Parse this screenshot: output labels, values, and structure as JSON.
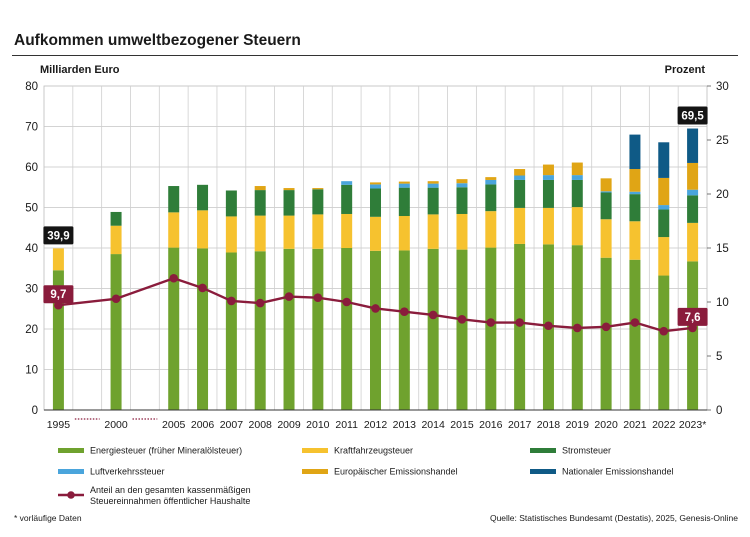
{
  "title": "Aufkommen umweltbezogener Steuern",
  "chart_data": {
    "type": "bar",
    "stacked": true,
    "left_axis_label": "Milliarden Euro",
    "right_axis_label": "Prozent",
    "ylim": [
      0,
      80
    ],
    "yticks": [
      "0",
      "10",
      "20",
      "30",
      "40",
      "50",
      "60",
      "70",
      "80"
    ],
    "y2lim": [
      0,
      30
    ],
    "y2ticks": [
      "0",
      "5",
      "10",
      "15",
      "20",
      "25",
      "30"
    ],
    "categories": [
      "1995",
      "2000",
      "2005",
      "2006",
      "2007",
      "2008",
      "2009",
      "2010",
      "2011",
      "2012",
      "2013",
      "2014",
      "2015",
      "2016",
      "2017",
      "2018",
      "2019",
      "2020",
      "2021",
      "2022",
      "2023*"
    ],
    "series": [
      {
        "name": "Energiesteuer (früher Mineralölsteuer)",
        "color": "#6fa22e",
        "values": [
          34.5,
          38.5,
          40.1,
          39.9,
          38.9,
          39.2,
          39.8,
          39.8,
          40.0,
          39.3,
          39.4,
          39.8,
          39.6,
          40.1,
          41.0,
          40.9,
          40.7,
          37.6,
          37.1,
          33.2,
          36.7
        ]
      },
      {
        "name": "Kraftfahrzeugsteuer",
        "color": "#f6c22f",
        "values": [
          5.4,
          7.0,
          8.7,
          9.4,
          8.9,
          8.8,
          8.2,
          8.5,
          8.4,
          8.4,
          8.5,
          8.5,
          8.8,
          9.0,
          8.9,
          9.0,
          9.4,
          9.5,
          9.5,
          9.5,
          9.5
        ]
      },
      {
        "name": "Stromsteuer",
        "color": "#2f7d39",
        "values": [
          0,
          3.4,
          6.5,
          6.3,
          6.4,
          6.3,
          6.3,
          6.2,
          7.2,
          7.0,
          7.0,
          6.6,
          6.6,
          6.6,
          6.9,
          6.9,
          6.7,
          6.6,
          6.7,
          6.8,
          6.8
        ]
      },
      {
        "name": "Luftverkehrssteuer",
        "color": "#4aa5dc",
        "values": [
          0,
          0,
          0,
          0,
          0,
          0,
          0,
          0,
          0.9,
          1.0,
          1.0,
          1.0,
          1.0,
          1.1,
          1.1,
          1.2,
          1.2,
          0.3,
          0.6,
          1.1,
          1.4
        ]
      },
      {
        "name": "Europäischer Emissionshandel",
        "color": "#e0a515",
        "values": [
          0,
          0,
          0,
          0,
          0,
          1.0,
          0.5,
          0.3,
          0,
          0.5,
          0.5,
          0.6,
          1.0,
          0.7,
          1.6,
          2.6,
          3.1,
          3.2,
          5.6,
          6.7,
          6.6
        ]
      },
      {
        "name": "Nationaler Emissionshandel",
        "color": "#0f5a86",
        "values": [
          0,
          0,
          0,
          0,
          0,
          0,
          0,
          0,
          0,
          0,
          0,
          0,
          0,
          0,
          0,
          0,
          0,
          0,
          8.5,
          8.8,
          8.5
        ]
      }
    ],
    "line": {
      "name": "Anteil an den gesamten kassenmäßigen Steuereinnahmen öffentlicher Haushalte",
      "color": "#8a1c3c",
      "values": [
        9.7,
        10.3,
        12.2,
        11.3,
        10.1,
        9.9,
        10.5,
        10.4,
        10.0,
        9.4,
        9.1,
        8.8,
        8.4,
        8.1,
        8.1,
        7.8,
        7.6,
        7.7,
        8.1,
        7.3,
        7.6
      ]
    },
    "callouts": [
      {
        "category": "1995",
        "text": "39,9",
        "kind": "total"
      },
      {
        "category": "1995",
        "text": "9,7",
        "kind": "line"
      },
      {
        "category": "2023*",
        "text": "69,5",
        "kind": "total"
      },
      {
        "category": "2023*",
        "text": "7,6",
        "kind": "line"
      }
    ],
    "grid": true,
    "legend_position": "bottom"
  },
  "footnote": "* vorläufige Daten",
  "source": "Quelle: Statistisches Bundesamt (Destatis), 2025, Genesis-Online"
}
